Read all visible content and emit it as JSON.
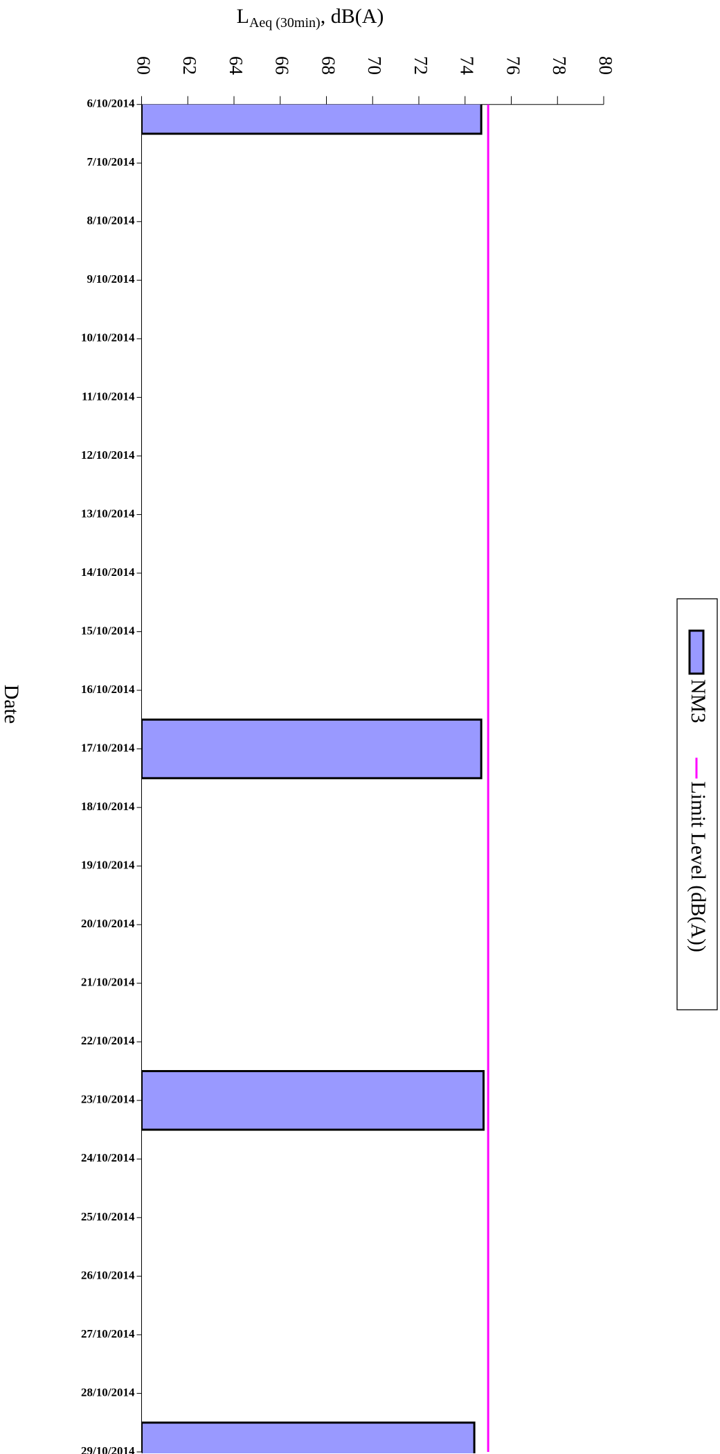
{
  "chart_data": {
    "type": "bar",
    "orientation": "horizontal",
    "x_label": {
      "main": "L",
      "sub": "Aeq (30min)",
      "rest": ", dB(A)"
    },
    "y_label": "Date",
    "categories": [
      "6/10/2014",
      "7/10/2014",
      "8/10/2014",
      "9/10/2014",
      "10/10/2014",
      "11/10/2014",
      "12/10/2014",
      "13/10/2014",
      "14/10/2014",
      "15/10/2014",
      "16/10/2014",
      "17/10/2014",
      "18/10/2014",
      "19/10/2014",
      "20/10/2014",
      "21/10/2014",
      "22/10/2014",
      "23/10/2014",
      "24/10/2014",
      "25/10/2014",
      "26/10/2014",
      "27/10/2014",
      "28/10/2014",
      "29/10/2014"
    ],
    "series": [
      {
        "name": "NM3",
        "type": "bar",
        "color": "#9999ff",
        "values": [
          74.7,
          null,
          null,
          null,
          null,
          null,
          null,
          null,
          null,
          null,
          null,
          74.7,
          null,
          null,
          null,
          null,
          null,
          74.8,
          null,
          null,
          null,
          null,
          null,
          74.4
        ]
      },
      {
        "name": "Limit Level (dB(A))",
        "type": "line",
        "color": "#ff00ff",
        "values": [
          75,
          75,
          75,
          75,
          75,
          75,
          75,
          75,
          75,
          75,
          75,
          75,
          75,
          75,
          75,
          75,
          75,
          75,
          75,
          75,
          75,
          75,
          75,
          75
        ]
      }
    ],
    "xlim": [
      60,
      80
    ],
    "xticks": [
      60,
      62,
      64,
      66,
      68,
      70,
      72,
      74,
      76,
      78,
      80
    ],
    "legend": "right"
  }
}
